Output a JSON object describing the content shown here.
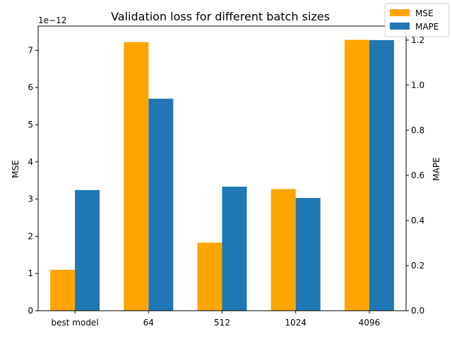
{
  "chart_data": {
    "type": "bar",
    "title": "Validation loss for different batch sizes",
    "categories": [
      "best model",
      "64",
      "512",
      "1024",
      "4096"
    ],
    "left_axis": {
      "label": "MSE",
      "exponent_label": "1e−12",
      "ylim": [
        0,
        7.65
      ],
      "ticks": [
        0,
        1,
        2,
        3,
        4,
        5,
        6,
        7
      ],
      "tick_labels": [
        "0",
        "1",
        "2",
        "3",
        "4",
        "5",
        "6",
        "7"
      ]
    },
    "right_axis": {
      "label": "MAPE",
      "ylim": [
        0,
        1.2622
      ],
      "ticks": [
        0,
        0.2,
        0.4,
        0.6,
        0.8,
        1.0,
        1.2
      ],
      "tick_labels": [
        "0.0",
        "0.2",
        "0.4",
        "0.6",
        "0.8",
        "1.0",
        "1.2"
      ]
    },
    "series": [
      {
        "name": "MSE",
        "axis": "left",
        "color": "#ffa500",
        "values": [
          1.1e-12,
          7.22e-12,
          1.83e-12,
          3.27e-12,
          7.28e-12
        ]
      },
      {
        "name": "MAPE",
        "axis": "right",
        "color": "#1f77b4",
        "values": [
          0.535,
          0.94,
          0.55,
          0.5,
          1.2
        ]
      }
    ],
    "legend": {
      "position": "top-right"
    },
    "grid": false
  }
}
